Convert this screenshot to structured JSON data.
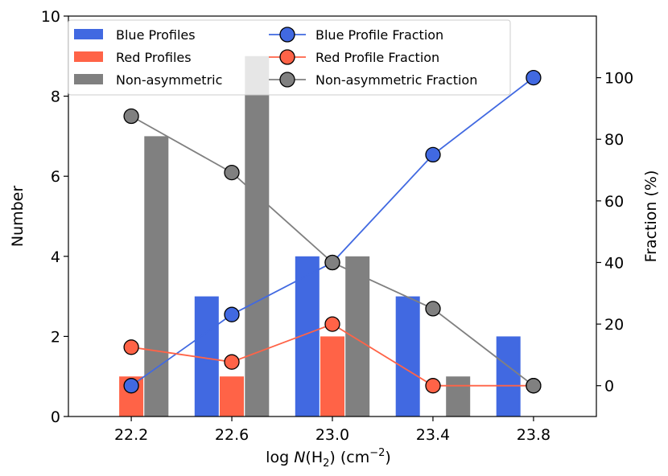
{
  "chart_data": {
    "type": "bar",
    "xlabel_prefix": "log ",
    "xlabel_var": "N",
    "xlabel_paren": "(H",
    "xlabel_sub": "2",
    "xlabel_close": ")",
    "xlabel_unit": " (cm",
    "xlabel_unit_sup": "−2",
    "xlabel_unit_close": ")",
    "ylabel_left": "Number",
    "ylabel_right": "Fraction (%)",
    "x_ticks": [
      "22.2",
      "22.6",
      "23.0",
      "23.4",
      "23.8"
    ],
    "x_values": [
      22.2,
      22.6,
      23.0,
      23.4,
      23.8
    ],
    "xlim": [
      21.95,
      24.05
    ],
    "ylim_left": [
      0,
      10
    ],
    "y_ticks_left": [
      "0",
      "2",
      "4",
      "6",
      "8",
      "10"
    ],
    "ylim_right": [
      -10,
      120
    ],
    "y_ticks_right": [
      "0",
      "20",
      "40",
      "60",
      "80",
      "100"
    ],
    "bar_series": [
      {
        "name": "Blue Profiles",
        "color": "#4169e1",
        "values": [
          0,
          3,
          4,
          3,
          2
        ]
      },
      {
        "name": "Red Profiles",
        "color": "#ff6347",
        "values": [
          1,
          1,
          2,
          0,
          0
        ]
      },
      {
        "name": "Non-asymmetric",
        "color": "#808080",
        "values": [
          7,
          9,
          4,
          1,
          0
        ]
      }
    ],
    "line_series": [
      {
        "name": "Blue Profile Fraction",
        "color": "#4169e1",
        "values": [
          0,
          23.1,
          40,
          75,
          100
        ]
      },
      {
        "name": "Red Profile Fraction",
        "color": "#ff6347",
        "values": [
          12.5,
          7.7,
          20,
          0,
          0
        ]
      },
      {
        "name": "Non-asymmetric Fraction",
        "color": "#808080",
        "values": [
          87.5,
          69.2,
          40,
          25,
          0
        ]
      }
    ],
    "grid": false,
    "legend_position": "top"
  }
}
